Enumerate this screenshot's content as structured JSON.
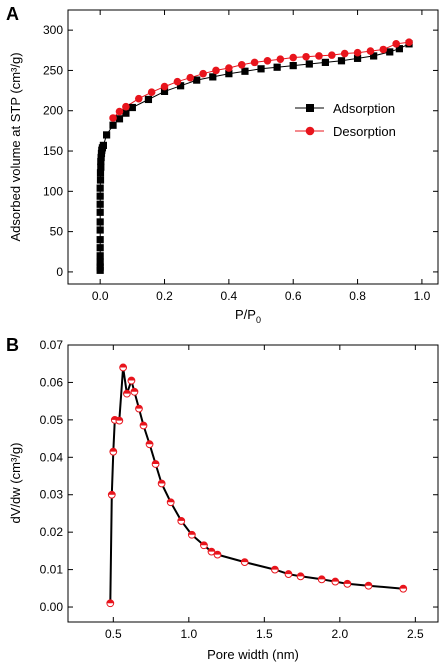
{
  "chart_data": [
    {
      "panel_label": "A",
      "type": "scatter",
      "xlabel": "P/P",
      "xlabel_sub": "0",
      "ylabel": "Adsorbed volume at STP (cm³/g)",
      "xlim": [
        -0.1,
        1.05
      ],
      "ylim": [
        -15,
        325
      ],
      "xticks": [
        "0.0",
        "0.2",
        "0.4",
        "0.6",
        "0.8",
        "1.0"
      ],
      "yticks": [
        "0",
        "50",
        "100",
        "150",
        "200",
        "250",
        "300"
      ],
      "legend_position": "center-right",
      "series": [
        {
          "name": "Adsorption",
          "color": "#000000",
          "marker": "square",
          "points": [
            [
              0.0,
              2
            ],
            [
              0.0,
              6
            ],
            [
              0.0,
              12
            ],
            [
              0.0,
              20
            ],
            [
              0.0,
              30
            ],
            [
              0.0,
              40
            ],
            [
              0.0,
              52
            ],
            [
              0.0,
              62
            ],
            [
              0.0,
              74
            ],
            [
              0.0,
              84
            ],
            [
              0.0,
              94
            ],
            [
              0.0,
              104
            ],
            [
              0.001,
              114
            ],
            [
              0.001,
              123
            ],
            [
              0.002,
              130
            ],
            [
              0.002,
              137
            ],
            [
              0.003,
              142
            ],
            [
              0.004,
              147
            ],
            [
              0.005,
              151
            ],
            [
              0.007,
              154
            ],
            [
              0.01,
              157
            ],
            [
              0.02,
              170
            ],
            [
              0.04,
              182
            ],
            [
              0.06,
              190
            ],
            [
              0.08,
              197
            ],
            [
              0.1,
              204
            ],
            [
              0.15,
              214
            ],
            [
              0.2,
              224
            ],
            [
              0.25,
              231
            ],
            [
              0.3,
              238
            ],
            [
              0.35,
              242
            ],
            [
              0.4,
              246
            ],
            [
              0.45,
              249
            ],
            [
              0.5,
              252
            ],
            [
              0.55,
              254
            ],
            [
              0.6,
              256
            ],
            [
              0.65,
              258
            ],
            [
              0.7,
              260
            ],
            [
              0.75,
              262
            ],
            [
              0.8,
              265
            ],
            [
              0.85,
              268
            ],
            [
              0.9,
              273
            ],
            [
              0.93,
              277
            ],
            [
              0.96,
              283
            ]
          ]
        },
        {
          "name": "Desorption",
          "color": "#e8141c",
          "marker": "circle",
          "points": [
            [
              0.96,
              285
            ],
            [
              0.92,
              283
            ],
            [
              0.88,
              276
            ],
            [
              0.84,
              274
            ],
            [
              0.8,
              272
            ],
            [
              0.76,
              271
            ],
            [
              0.72,
              269
            ],
            [
              0.68,
              268
            ],
            [
              0.64,
              267
            ],
            [
              0.6,
              266
            ],
            [
              0.56,
              264
            ],
            [
              0.52,
              262
            ],
            [
              0.48,
              260
            ],
            [
              0.44,
              257
            ],
            [
              0.4,
              253
            ],
            [
              0.36,
              250
            ],
            [
              0.32,
              246
            ],
            [
              0.28,
              241
            ],
            [
              0.24,
              236
            ],
            [
              0.2,
              230
            ],
            [
              0.16,
              223
            ],
            [
              0.12,
              215
            ],
            [
              0.08,
              205
            ],
            [
              0.06,
              199
            ],
            [
              0.04,
              191
            ]
          ]
        }
      ]
    },
    {
      "panel_label": "B",
      "type": "line",
      "xlabel": "Pore width (nm)",
      "ylabel": "dV/dw (cm³/g)",
      "xlim": [
        0.2,
        2.65
      ],
      "ylim": [
        -0.004,
        0.07
      ],
      "xticks": [
        "0.5",
        "1.0",
        "1.5",
        "2.0",
        "2.5"
      ],
      "yticks": [
        "0.00",
        "0.01",
        "0.02",
        "0.03",
        "0.04",
        "0.05",
        "0.06",
        "0.07"
      ],
      "series": [
        {
          "name": "",
          "line_color": "#000000",
          "marker_color": "#e8141c",
          "points": [
            [
              0.48,
              0.001
            ],
            [
              0.49,
              0.03
            ],
            [
              0.5,
              0.0415
            ],
            [
              0.51,
              0.05
            ],
            [
              0.54,
              0.0498
            ],
            [
              0.565,
              0.064
            ],
            [
              0.59,
              0.057
            ],
            [
              0.62,
              0.0605
            ],
            [
              0.64,
              0.0575
            ],
            [
              0.67,
              0.053
            ],
            [
              0.7,
              0.0485
            ],
            [
              0.74,
              0.0435
            ],
            [
              0.78,
              0.0382
            ],
            [
              0.82,
              0.033
            ],
            [
              0.88,
              0.028
            ],
            [
              0.95,
              0.023
            ],
            [
              1.02,
              0.0193
            ],
            [
              1.1,
              0.0165
            ],
            [
              1.15,
              0.0148
            ],
            [
              1.19,
              0.014
            ],
            [
              1.37,
              0.012
            ],
            [
              1.57,
              0.01
            ],
            [
              1.66,
              0.0088
            ],
            [
              1.74,
              0.0082
            ],
            [
              1.88,
              0.0074
            ],
            [
              1.97,
              0.0068
            ],
            [
              2.05,
              0.0062
            ],
            [
              2.19,
              0.0057
            ],
            [
              2.42,
              0.0049
            ]
          ]
        }
      ]
    }
  ]
}
